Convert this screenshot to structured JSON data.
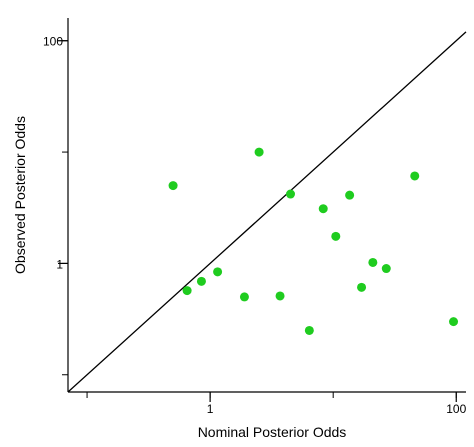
{
  "chart_data": {
    "type": "scatter",
    "title": "",
    "xlabel": "Nominal Posterior Odds",
    "ylabel": "Observed Posterior Odds",
    "x_scale": "log",
    "y_scale": "log",
    "xlim": [
      0.07,
      120
    ],
    "ylim": [
      0.07,
      160
    ],
    "x_ticks": [
      {
        "value": 1,
        "label": "1"
      },
      {
        "value": 100,
        "label": "100"
      }
    ],
    "y_ticks": [
      {
        "value": 1,
        "label": "1"
      },
      {
        "value": 100,
        "label": "100"
      }
    ],
    "reference_line": "y = x",
    "grid": false,
    "point_color": "#1fcc1f",
    "points": [
      {
        "x": 0.5,
        "y": 5.0
      },
      {
        "x": 0.65,
        "y": 0.57
      },
      {
        "x": 0.85,
        "y": 0.69
      },
      {
        "x": 1.15,
        "y": 0.84
      },
      {
        "x": 1.9,
        "y": 0.5
      },
      {
        "x": 2.5,
        "y": 10.0
      },
      {
        "x": 3.7,
        "y": 0.51
      },
      {
        "x": 4.5,
        "y": 4.2
      },
      {
        "x": 6.4,
        "y": 0.25
      },
      {
        "x": 8.3,
        "y": 3.1
      },
      {
        "x": 10.5,
        "y": 1.75
      },
      {
        "x": 13.6,
        "y": 4.1
      },
      {
        "x": 17.0,
        "y": 0.61
      },
      {
        "x": 21.0,
        "y": 1.02
      },
      {
        "x": 27.0,
        "y": 0.9
      },
      {
        "x": 46.0,
        "y": 6.1
      },
      {
        "x": 95.0,
        "y": 0.3
      }
    ]
  }
}
